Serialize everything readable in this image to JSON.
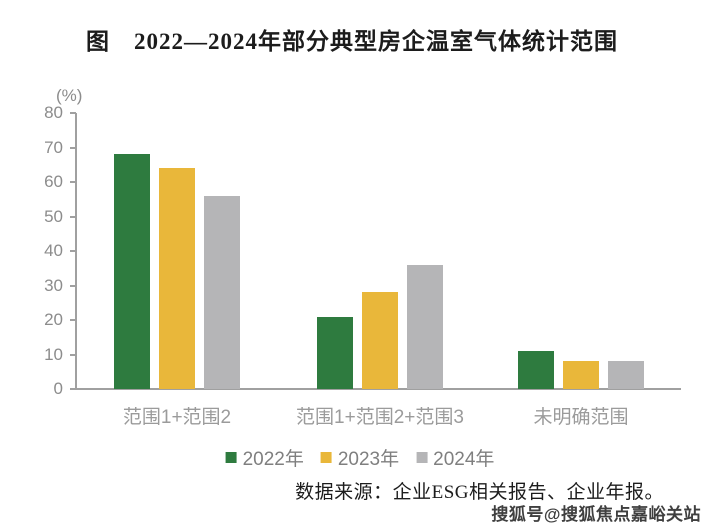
{
  "title": "图　2022—2024年部分典型房企温室气体统计范围",
  "chart_data": {
    "type": "bar",
    "title": "图　2022—2024年部分典型房企温室气体统计范围",
    "unit_label": "(%)",
    "xlabel": "",
    "ylabel": "(%)",
    "ylim": [
      0,
      80
    ],
    "y_ticks": [
      0,
      10,
      20,
      30,
      40,
      50,
      60,
      70,
      80
    ],
    "grid": false,
    "legend_position": "bottom",
    "categories": [
      "范围1+范围2",
      "范围1+范围2+范围3",
      "未明确范围"
    ],
    "series": [
      {
        "name": "2022年",
        "color": "#2e7b3f",
        "values": [
          68,
          21,
          11
        ]
      },
      {
        "name": "2023年",
        "color": "#e9b73a",
        "values": [
          64,
          28,
          8
        ]
      },
      {
        "name": "2024年",
        "color": "#b5b5b7",
        "values": [
          56,
          36,
          8
        ]
      }
    ]
  },
  "colors": {
    "axis": "#a0a0a0",
    "tick_label": "#8c8c8c",
    "category_label": "#9b9b9b",
    "legend_label": "#7f7f7f",
    "title_text": "#1c1c1c"
  },
  "source_note": "数据来源：企业ESG相关报告、企业年报。",
  "watermark": "搜狐号@搜狐焦点嘉峪关站"
}
